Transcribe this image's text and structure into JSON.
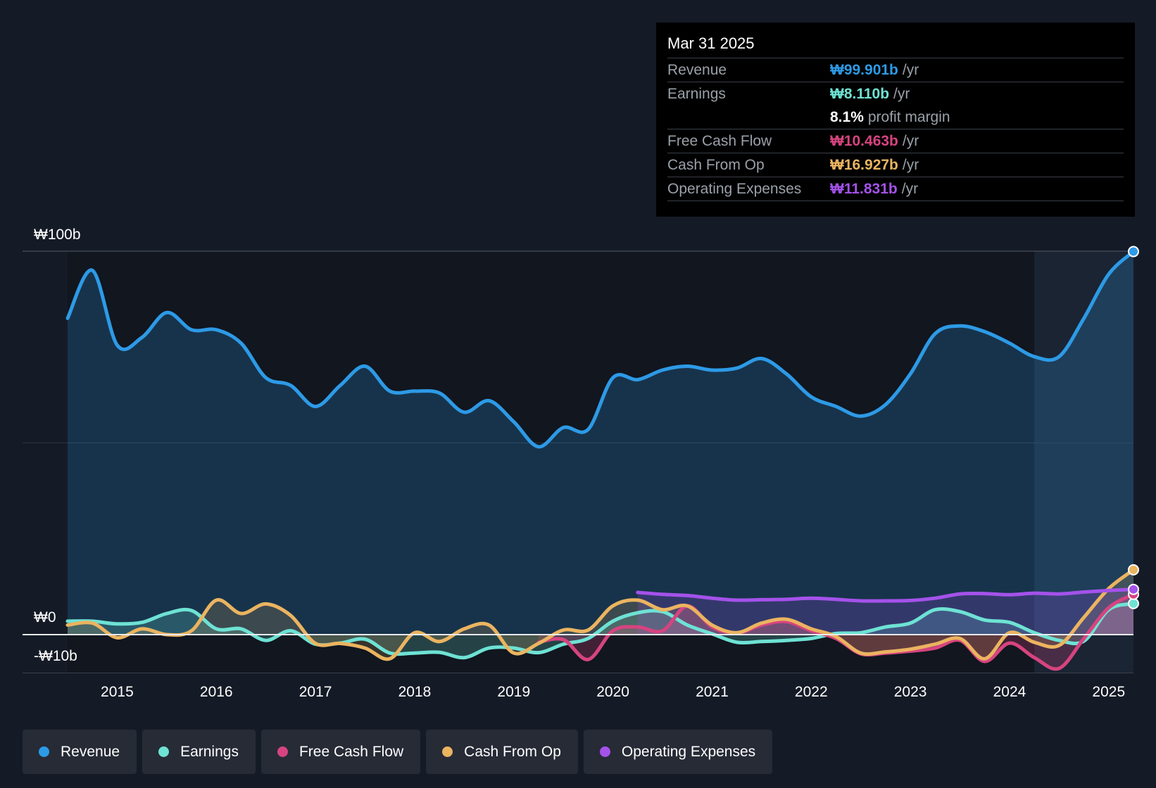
{
  "tooltip": {
    "date": "Mar 31 2025",
    "rows": [
      {
        "label": "Revenue",
        "value": "₩99.901b",
        "unit": "/yr",
        "color": "#2d9ae6"
      },
      {
        "label": "Earnings",
        "value": "₩8.110b",
        "unit": "/yr",
        "color": "#6ee2d4"
      },
      {
        "label": "",
        "value": "8.1%",
        "unit": "profit margin",
        "color": "#ffffff"
      },
      {
        "label": "Free Cash Flow",
        "value": "₩10.463b",
        "unit": "/yr",
        "color": "#d6447f"
      },
      {
        "label": "Cash From Op",
        "value": "₩16.927b",
        "unit": "/yr",
        "color": "#ebb460"
      },
      {
        "label": "Operating Expenses",
        "value": "₩11.831b",
        "unit": "/yr",
        "color": "#a452ea"
      }
    ]
  },
  "legend": [
    {
      "label": "Revenue",
      "color": "#2d9ae6"
    },
    {
      "label": "Earnings",
      "color": "#6ee2d4"
    },
    {
      "label": "Free Cash Flow",
      "color": "#d6447f"
    },
    {
      "label": "Cash From Op",
      "color": "#ebb460"
    },
    {
      "label": "Operating Expenses",
      "color": "#a452ea"
    }
  ],
  "chart_data": {
    "type": "line",
    "title": "",
    "xlabel": "",
    "ylabel": "",
    "x_range": [
      2014.5,
      2025.25
    ],
    "ylim": [
      -10,
      100
    ],
    "y_ticks": [
      {
        "value": 100,
        "label": "₩100b"
      },
      {
        "value": 0,
        "label": "₩0"
      },
      {
        "value": -10,
        "label": "-₩10b"
      }
    ],
    "x_ticks": [
      {
        "value": 2015,
        "label": "2015"
      },
      {
        "value": 2016,
        "label": "2016"
      },
      {
        "value": 2017,
        "label": "2017"
      },
      {
        "value": 2018,
        "label": "2018"
      },
      {
        "value": 2019,
        "label": "2019"
      },
      {
        "value": 2020,
        "label": "2020"
      },
      {
        "value": 2021,
        "label": "2021"
      },
      {
        "value": 2022,
        "label": "2022"
      },
      {
        "value": 2023,
        "label": "2023"
      },
      {
        "value": 2024,
        "label": "2024"
      },
      {
        "value": 2025,
        "label": "2025"
      }
    ],
    "highlight_from": 2024.25,
    "series": [
      {
        "name": "Revenue",
        "color": "#2d9ae6",
        "fill": true,
        "points": [
          [
            2014.5,
            82.5
          ],
          [
            2014.75,
            95
          ],
          [
            2015.0,
            75.5
          ],
          [
            2015.25,
            77.5
          ],
          [
            2015.5,
            84
          ],
          [
            2015.75,
            79.5
          ],
          [
            2016.0,
            79.5
          ],
          [
            2016.25,
            76
          ],
          [
            2016.5,
            67
          ],
          [
            2016.75,
            65
          ],
          [
            2017.0,
            59.5
          ],
          [
            2017.25,
            65
          ],
          [
            2017.5,
            70
          ],
          [
            2017.75,
            63.5
          ],
          [
            2018.0,
            63.5
          ],
          [
            2018.25,
            63
          ],
          [
            2018.5,
            58
          ],
          [
            2018.75,
            61
          ],
          [
            2019.0,
            55.5
          ],
          [
            2019.25,
            49
          ],
          [
            2019.5,
            54
          ],
          [
            2019.75,
            53.5
          ],
          [
            2020.0,
            67
          ],
          [
            2020.25,
            66.5
          ],
          [
            2020.5,
            69
          ],
          [
            2020.75,
            70
          ],
          [
            2021.0,
            69
          ],
          [
            2021.25,
            69.5
          ],
          [
            2021.5,
            72
          ],
          [
            2021.75,
            68
          ],
          [
            2022.0,
            62
          ],
          [
            2022.25,
            59.5
          ],
          [
            2022.5,
            57
          ],
          [
            2022.75,
            60
          ],
          [
            2023.0,
            68
          ],
          [
            2023.25,
            78.5
          ],
          [
            2023.5,
            80.5
          ],
          [
            2023.75,
            79
          ],
          [
            2024.0,
            76
          ],
          [
            2024.25,
            72.5
          ],
          [
            2024.5,
            72.5
          ],
          [
            2024.75,
            82.5
          ],
          [
            2025.0,
            94
          ],
          [
            2025.25,
            99.9
          ]
        ]
      },
      {
        "name": "Earnings",
        "color": "#6ee2d4",
        "fill": true,
        "points": [
          [
            2014.5,
            3.5
          ],
          [
            2014.75,
            3.5
          ],
          [
            2015.0,
            2.8
          ],
          [
            2015.25,
            3.2
          ],
          [
            2015.5,
            5.5
          ],
          [
            2015.75,
            6.3
          ],
          [
            2016.0,
            1.5
          ],
          [
            2016.25,
            1.5
          ],
          [
            2016.5,
            -1.5
          ],
          [
            2016.75,
            1
          ],
          [
            2017.0,
            -2.5
          ],
          [
            2017.25,
            -2.2
          ],
          [
            2017.5,
            -1.2
          ],
          [
            2017.75,
            -4.8
          ],
          [
            2018.0,
            -4.8
          ],
          [
            2018.25,
            -4.6
          ],
          [
            2018.5,
            -6
          ],
          [
            2018.75,
            -3.5
          ],
          [
            2019.0,
            -3.5
          ],
          [
            2019.25,
            -4.7
          ],
          [
            2019.5,
            -2.5
          ],
          [
            2019.75,
            -1
          ],
          [
            2020.0,
            3.5
          ],
          [
            2020.25,
            5.7
          ],
          [
            2020.5,
            6
          ],
          [
            2020.75,
            2.5
          ],
          [
            2021.0,
            0.2
          ],
          [
            2021.25,
            -2
          ],
          [
            2021.5,
            -1.8
          ],
          [
            2021.75,
            -1.5
          ],
          [
            2022.0,
            -1
          ],
          [
            2022.25,
            0.3
          ],
          [
            2022.5,
            0.5
          ],
          [
            2022.75,
            2
          ],
          [
            2023.0,
            3
          ],
          [
            2023.25,
            6.5
          ],
          [
            2023.5,
            6
          ],
          [
            2023.75,
            3.8
          ],
          [
            2024.0,
            3.2
          ],
          [
            2024.25,
            0.5
          ],
          [
            2024.5,
            -1.5
          ],
          [
            2024.75,
            -1.7
          ],
          [
            2025.0,
            6.5
          ],
          [
            2025.25,
            8.1
          ]
        ]
      },
      {
        "name": "Free Cash Flow",
        "color": "#d6447f",
        "fill": true,
        "points": [
          [
            2019.25,
            -2
          ],
          [
            2019.5,
            -1.3
          ],
          [
            2019.75,
            -6.5
          ],
          [
            2020.0,
            1
          ],
          [
            2020.25,
            2
          ],
          [
            2020.5,
            1
          ],
          [
            2020.75,
            7.5
          ],
          [
            2021.0,
            2
          ],
          [
            2021.25,
            0.4
          ],
          [
            2021.5,
            2.5
          ],
          [
            2021.75,
            3.4
          ],
          [
            2022.0,
            1
          ],
          [
            2022.25,
            -1
          ],
          [
            2022.5,
            -5
          ],
          [
            2022.75,
            -4.8
          ],
          [
            2023.0,
            -4.3
          ],
          [
            2023.25,
            -3.5
          ],
          [
            2023.5,
            -1.5
          ],
          [
            2023.75,
            -7
          ],
          [
            2024.0,
            -2.2
          ],
          [
            2024.25,
            -6
          ],
          [
            2024.5,
            -8.8
          ],
          [
            2024.75,
            -1
          ],
          [
            2025.0,
            7
          ],
          [
            2025.25,
            10.5
          ]
        ]
      },
      {
        "name": "Cash From Op",
        "color": "#ebb460",
        "fill": true,
        "points": [
          [
            2014.5,
            2.5
          ],
          [
            2014.75,
            3
          ],
          [
            2015.0,
            -0.8
          ],
          [
            2015.25,
            1.5
          ],
          [
            2015.5,
            0
          ],
          [
            2015.75,
            1
          ],
          [
            2016.0,
            9
          ],
          [
            2016.25,
            5.5
          ],
          [
            2016.5,
            8
          ],
          [
            2016.75,
            5
          ],
          [
            2017.0,
            -2.3
          ],
          [
            2017.25,
            -2.3
          ],
          [
            2017.5,
            -3.5
          ],
          [
            2017.75,
            -6.3
          ],
          [
            2018.0,
            0.5
          ],
          [
            2018.25,
            -1.8
          ],
          [
            2018.5,
            1.5
          ],
          [
            2018.75,
            2.5
          ],
          [
            2019.0,
            -4.8
          ],
          [
            2019.25,
            -2.3
          ],
          [
            2019.5,
            1.2
          ],
          [
            2019.75,
            1.2
          ],
          [
            2020.0,
            7.5
          ],
          [
            2020.25,
            9
          ],
          [
            2020.5,
            6.5
          ],
          [
            2020.75,
            7.5
          ],
          [
            2021.0,
            2.5
          ],
          [
            2021.25,
            0.5
          ],
          [
            2021.5,
            3
          ],
          [
            2021.75,
            4
          ],
          [
            2022.0,
            1.5
          ],
          [
            2022.25,
            -0.5
          ],
          [
            2022.5,
            -4.8
          ],
          [
            2022.75,
            -4.5
          ],
          [
            2023.0,
            -3.8
          ],
          [
            2023.25,
            -2.5
          ],
          [
            2023.5,
            -1
          ],
          [
            2023.75,
            -6.3
          ],
          [
            2024.0,
            0.5
          ],
          [
            2024.25,
            -2
          ],
          [
            2024.5,
            -2.8
          ],
          [
            2024.75,
            4.5
          ],
          [
            2025.0,
            12
          ],
          [
            2025.25,
            16.9
          ]
        ]
      },
      {
        "name": "Operating Expenses",
        "color": "#a452ea",
        "fill": true,
        "points": [
          [
            2020.25,
            11
          ],
          [
            2020.5,
            10.5
          ],
          [
            2020.75,
            10.2
          ],
          [
            2021.0,
            9.5
          ],
          [
            2021.25,
            9
          ],
          [
            2021.5,
            9.1
          ],
          [
            2021.75,
            9.2
          ],
          [
            2022.0,
            9.5
          ],
          [
            2022.25,
            9.2
          ],
          [
            2022.5,
            8.8
          ],
          [
            2022.75,
            8.8
          ],
          [
            2023.0,
            8.9
          ],
          [
            2023.25,
            9.5
          ],
          [
            2023.5,
            10.6
          ],
          [
            2023.75,
            10.7
          ],
          [
            2024.0,
            10.4
          ],
          [
            2024.25,
            10.8
          ],
          [
            2024.5,
            10.6
          ],
          [
            2024.75,
            11.1
          ],
          [
            2025.0,
            11.5
          ],
          [
            2025.25,
            11.8
          ]
        ]
      }
    ]
  }
}
